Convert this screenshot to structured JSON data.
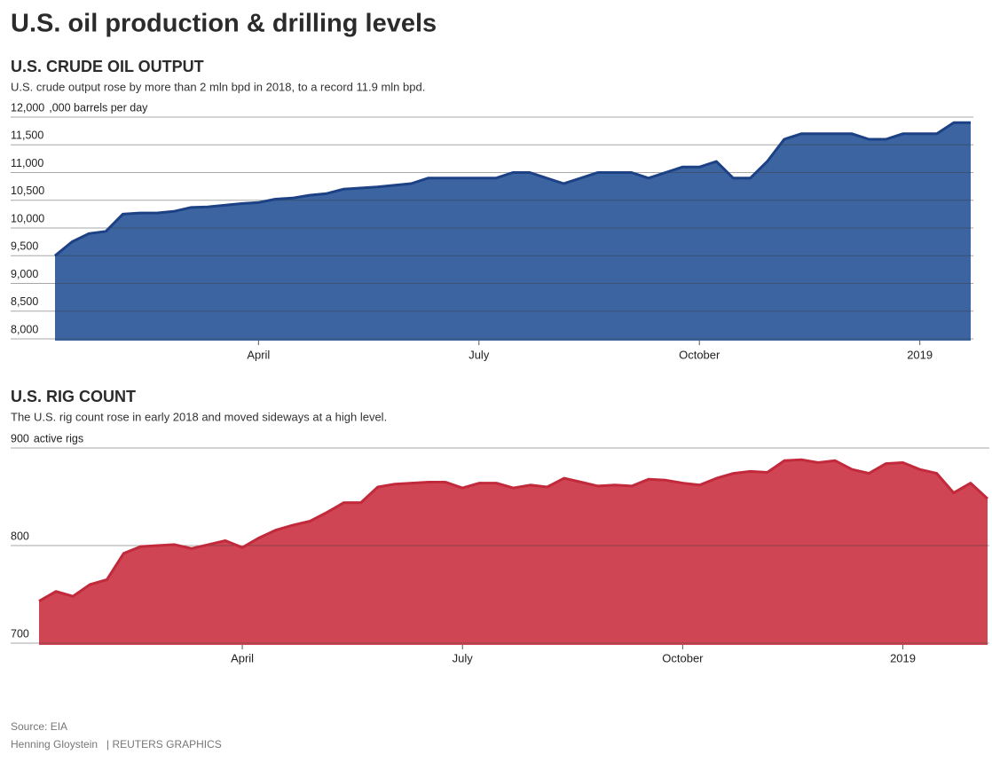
{
  "title": "U.S. oil production & drilling levels",
  "chart_data": [
    {
      "type": "area",
      "title": "U.S. CRUDE OIL OUTPUT",
      "subtitle": "U.S. crude output rose by more than 2 mln bpd in 2018, to a record 11.9 mln bpd.",
      "unit_label": ",000 barrels per day",
      "categories": [
        null,
        null,
        null,
        null,
        null,
        null,
        null,
        null,
        null,
        null,
        null,
        null,
        "April",
        null,
        null,
        null,
        null,
        null,
        null,
        null,
        null,
        null,
        null,
        null,
        null,
        "July",
        null,
        null,
        null,
        null,
        null,
        null,
        null,
        null,
        null,
        null,
        null,
        null,
        "October",
        null,
        null,
        null,
        null,
        null,
        null,
        null,
        null,
        null,
        null,
        null,
        null,
        "2019",
        null,
        null,
        null
      ],
      "values": [
        9500,
        9750,
        9900,
        9940,
        10250,
        10270,
        10270,
        10300,
        10370,
        10380,
        10410,
        10440,
        10460,
        10520,
        10540,
        10590,
        10620,
        10700,
        10720,
        10740,
        10770,
        10800,
        10900,
        10900,
        10900,
        10900,
        10900,
        11000,
        11000,
        10900,
        10800,
        10900,
        11000,
        11000,
        11000,
        10900,
        11000,
        11100,
        11100,
        11200,
        10900,
        10900,
        11200,
        11600,
        11700,
        11700,
        11700,
        11700,
        11600,
        11600,
        11700,
        11700,
        11700,
        11900,
        11900
      ],
      "color": "#3b64a0",
      "line_color": "#1c4184",
      "ylim": [
        8000,
        12000
      ],
      "yticks": [
        {
          "value": 8000,
          "label": "8,000"
        },
        {
          "value": 8500,
          "label": "8,500"
        },
        {
          "value": 9000,
          "label": "9,000"
        },
        {
          "value": 9500,
          "label": "9,500"
        },
        {
          "value": 10000,
          "label": "10,000"
        },
        {
          "value": 10500,
          "label": "10,500"
        },
        {
          "value": 11000,
          "label": "11,000"
        },
        {
          "value": 11500,
          "label": "11,500"
        },
        {
          "value": 12000,
          "label": "12,000"
        }
      ],
      "grid": true
    },
    {
      "type": "area",
      "title": "U.S. RIG COUNT",
      "subtitle": "The U.S. rig count rose in early 2018 and moved sideways at a high level.",
      "unit_label": "active rigs",
      "categories": [
        null,
        null,
        null,
        null,
        null,
        null,
        null,
        null,
        null,
        null,
        null,
        null,
        "April",
        null,
        null,
        null,
        null,
        null,
        null,
        null,
        null,
        null,
        null,
        null,
        null,
        "July",
        null,
        null,
        null,
        null,
        null,
        null,
        null,
        null,
        null,
        null,
        null,
        null,
        "October",
        null,
        null,
        null,
        null,
        null,
        null,
        null,
        null,
        null,
        null,
        null,
        null,
        "2019",
        null,
        null,
        null,
        null,
        null
      ],
      "values": [
        743,
        753,
        748,
        760,
        765,
        792,
        799,
        800,
        801,
        797,
        801,
        805,
        798,
        808,
        816,
        821,
        825,
        834,
        844,
        844,
        860,
        863,
        864,
        865,
        865,
        859,
        864,
        864,
        859,
        862,
        860,
        869,
        865,
        861,
        862,
        861,
        868,
        867,
        864,
        862,
        869,
        874,
        876,
        875,
        887,
        888,
        885,
        887,
        878,
        874,
        884,
        885,
        878,
        874,
        854,
        864,
        848
      ],
      "color": "#cf4553",
      "line_color": "#c22a3c",
      "ylim": [
        700,
        900
      ],
      "yticks": [
        700,
        800,
        900
      ],
      "grid": true
    }
  ],
  "source": "Source: EIA",
  "byline": "Henning Gloystein",
  "credit": "| REUTERS GRAPHICS"
}
